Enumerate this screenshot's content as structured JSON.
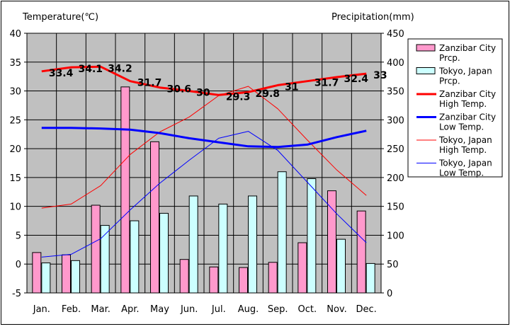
{
  "chart_data": {
    "type": "bar+line",
    "y_left_label": "Temperature(℃)",
    "y_right_label": "Precipitation(mm)",
    "y_left_range": [
      -5,
      40
    ],
    "y_left_ticks": [
      "-5",
      "0",
      "5",
      "10",
      "15",
      "20",
      "25",
      "30",
      "35",
      "40"
    ],
    "y_right_range": [
      0,
      450
    ],
    "y_right_ticks": [
      "0",
      "50",
      "100",
      "150",
      "200",
      "250",
      "300",
      "350",
      "400",
      "450"
    ],
    "categories": [
      "Jan.",
      "Feb.",
      "Mar.",
      "Apr.",
      "May",
      "Jun.",
      "Jul.",
      "Aug.",
      "Sep.",
      "Oct.",
      "Nov.",
      "Dec."
    ],
    "grid": true,
    "legend_position": "right",
    "bar_series": [
      {
        "name": "Zanzibar City Prcp.",
        "color": "#ff99cc",
        "values": [
          70,
          66,
          152,
          357,
          262,
          58,
          45,
          44,
          53,
          87,
          177,
          142
        ]
      },
      {
        "name": "Tokyo, Japan Prcp.",
        "color": "#ccffff",
        "values": [
          52,
          56,
          117,
          125,
          138,
          168,
          154,
          168,
          210,
          198,
          93,
          51
        ]
      }
    ],
    "line_series": [
      {
        "name": "Zanzibar City High Temp.",
        "color": "#ff0000",
        "width": 3,
        "values": [
          33.4,
          34.1,
          34.2,
          31.7,
          30.6,
          30,
          29.3,
          29.8,
          31,
          31.7,
          32.4,
          33
        ],
        "labels": [
          "33.4",
          "34.1",
          "34.2",
          "31.7",
          "30.6",
          "30",
          "29.3",
          "29.8",
          "31",
          "31.7",
          "32.4",
          "33"
        ]
      },
      {
        "name": "Zanzibar City Low Temp.",
        "color": "#0000ff",
        "width": 3,
        "values": [
          23.6,
          23.6,
          23.5,
          23.3,
          22.7,
          21.8,
          21.1,
          20.4,
          20.3,
          20.7,
          22,
          23.1
        ]
      },
      {
        "name": "Tokyo, Japan High Temp.",
        "color": "#ff0000",
        "width": 1,
        "values": [
          9.7,
          10.4,
          13.6,
          19.0,
          22.9,
          25.5,
          29.2,
          30.8,
          26.9,
          21.5,
          16.3,
          11.9
        ]
      },
      {
        "name": "Tokyo, Japan Low Temp.",
        "color": "#0000ff",
        "width": 1,
        "values": [
          1.2,
          1.7,
          4.4,
          9.4,
          14.0,
          18.0,
          21.8,
          23.0,
          19.7,
          14.2,
          8.7,
          3.7
        ]
      }
    ],
    "legend": [
      {
        "kind": "bar",
        "color": "#ff99cc",
        "line1": "Zanzibar City",
        "line2": "Prcp."
      },
      {
        "kind": "bar",
        "color": "#ccffff",
        "line1": "Tokyo, Japan",
        "line2": "Prcp."
      },
      {
        "kind": "line",
        "color": "#ff0000",
        "width": 3,
        "line1": "Zanzibar City",
        "line2": "High Temp."
      },
      {
        "kind": "line",
        "color": "#0000ff",
        "width": 3,
        "line1": "Zanzibar City",
        "line2": "Low Temp."
      },
      {
        "kind": "line",
        "color": "#ff0000",
        "width": 1,
        "line1": "Tokyo, Japan",
        "line2": "High Temp."
      },
      {
        "kind": "line",
        "color": "#0000ff",
        "width": 1,
        "line1": "Tokyo, Japan",
        "line2": "Low Temp."
      }
    ],
    "plot_background": "#c0c0c0"
  }
}
